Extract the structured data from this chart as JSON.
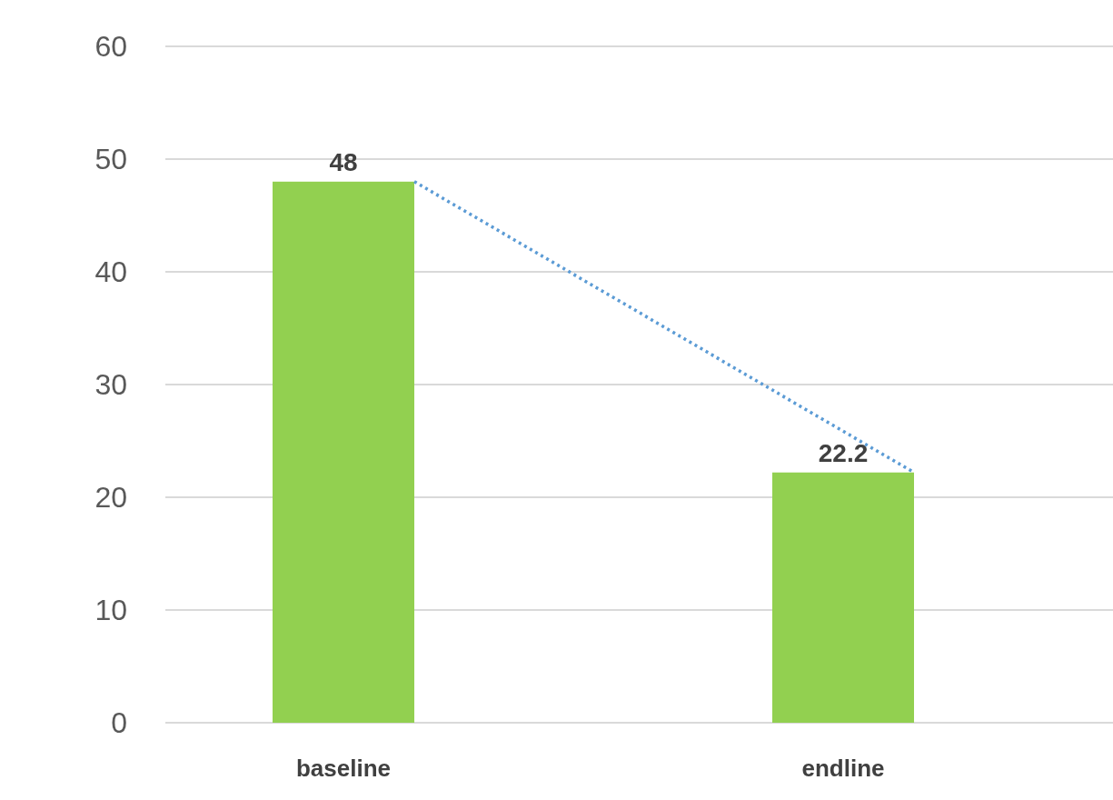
{
  "chart_data": {
    "type": "bar",
    "categories": [
      "baseline",
      "endline"
    ],
    "series": [
      {
        "color": "#92d050",
        "values": [
          48,
          22.2
        ],
        "value_labels": [
          "48",
          "22.2"
        ]
      },
      {
        "type": "line",
        "color": "#5b9bd5",
        "line_style": "dotted",
        "marker": "none",
        "values": [
          48,
          22.2
        ]
      }
    ],
    "ylim": [
      0,
      60
    ],
    "yticks": [
      0,
      10,
      20,
      30,
      40,
      50,
      60
    ],
    "grid": "y"
  }
}
